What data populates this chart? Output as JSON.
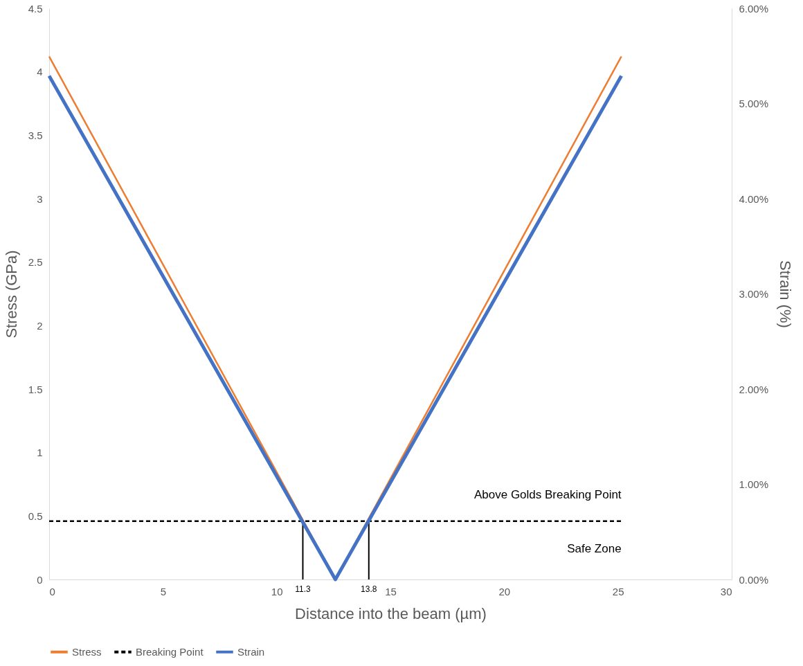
{
  "chart_data": {
    "type": "line",
    "xlabel": "Distance into the beam (µm)",
    "ylabel": "Stress (GPa)",
    "y2label": "Strain (%)",
    "xlim": [
      0,
      30
    ],
    "xticks": [
      0,
      5,
      10,
      15,
      20,
      25,
      30
    ],
    "ylim": [
      0,
      4.5
    ],
    "yticks": [
      0,
      0.5,
      1,
      1.5,
      2,
      2.5,
      3,
      3.5,
      4,
      4.5
    ],
    "y2lim": [
      0,
      6
    ],
    "y2ticks": [
      {
        "value": 0,
        "label": "0.00%"
      },
      {
        "value": 1,
        "label": "1.00%"
      },
      {
        "value": 2,
        "label": "2.00%"
      },
      {
        "value": 3,
        "label": "3.00%"
      },
      {
        "value": 4,
        "label": "4.00%"
      },
      {
        "value": 5,
        "label": "5.00%"
      },
      {
        "value": 6,
        "label": "6.00%"
      }
    ],
    "series": [
      {
        "name": "Stress",
        "color": "#ed7d31",
        "x": [
          0,
          12.58,
          25.15
        ],
        "values": [
          4.12,
          0,
          4.12
        ]
      },
      {
        "name": "Breaking Point",
        "color": "#000000",
        "line_style": "dashed",
        "x": [
          0,
          25.15
        ],
        "values": [
          0.46,
          0.46
        ]
      },
      {
        "name": "Strain",
        "color": "#4472c4",
        "axis": "y2",
        "x": [
          0,
          12.58,
          25.15
        ],
        "values": [
          5.29,
          0,
          5.29
        ]
      },
      {
        "color": "#000000",
        "x": [
          11.15,
          11.15
        ],
        "values": [
          0,
          0.46
        ]
      },
      {
        "color": "#000000",
        "x": [
          14.05,
          14.05
        ],
        "values": [
          0,
          0.46
        ]
      }
    ],
    "annotations": [
      {
        "text": "11.3",
        "x": 11.15,
        "y": 0
      },
      {
        "text": "13.8",
        "x": 14.05,
        "y": 0
      },
      "Above Golds Breaking Point",
      "Safe Zone"
    ],
    "grid": false,
    "legend": "bottom",
    "marker": "none",
    "line_style": "solid"
  }
}
